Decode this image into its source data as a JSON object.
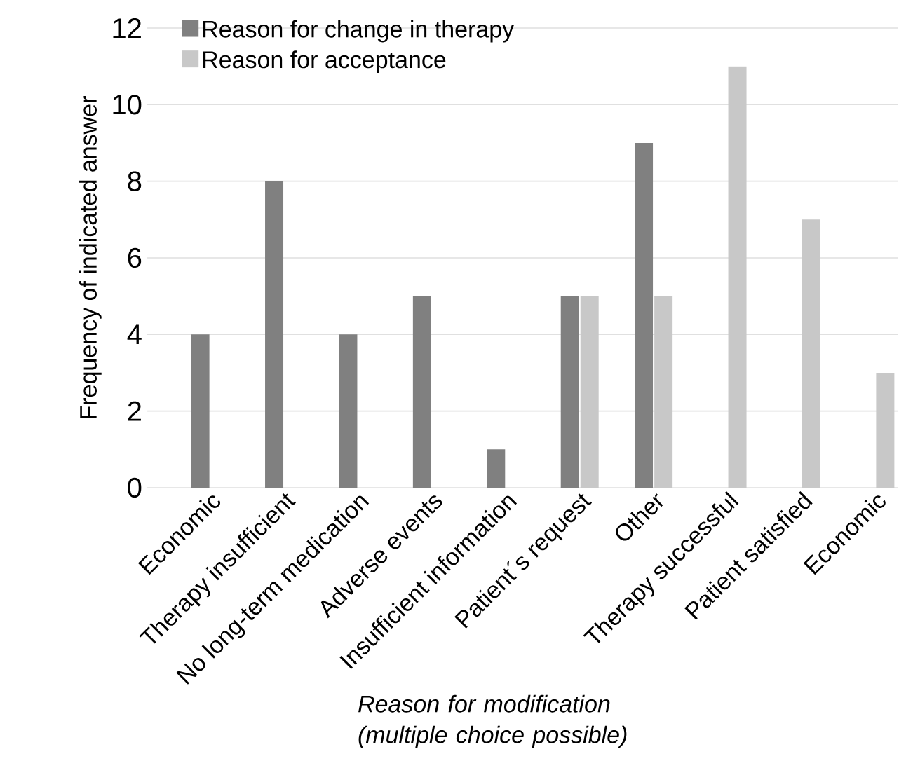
{
  "chart_data": {
    "type": "bar",
    "xlabel": "Reason for modification (multiple choice possible)",
    "ylabel": "Frequency of indicated answer",
    "categories": [
      "Economic",
      "Therapy insufficient",
      "No long-term medication",
      "Adverse events",
      "Insufficient information",
      "Patient´s request",
      "Other",
      "Therapy successful",
      "Patient satisfied",
      "Economic"
    ],
    "series": [
      {
        "name": "Reason for change in therapy",
        "color": "#808080",
        "values": [
          4,
          8,
          4,
          5,
          1,
          5,
          9,
          null,
          null,
          null
        ]
      },
      {
        "name": "Reason for acceptance",
        "color": "#c8c8c8",
        "values": [
          null,
          null,
          null,
          null,
          null,
          5,
          5,
          11,
          7,
          3
        ]
      }
    ],
    "ylim": [
      0,
      12
    ],
    "yticks": [
      0,
      2,
      4,
      6,
      8,
      10,
      12
    ],
    "grid": "y",
    "legend": "top left"
  }
}
